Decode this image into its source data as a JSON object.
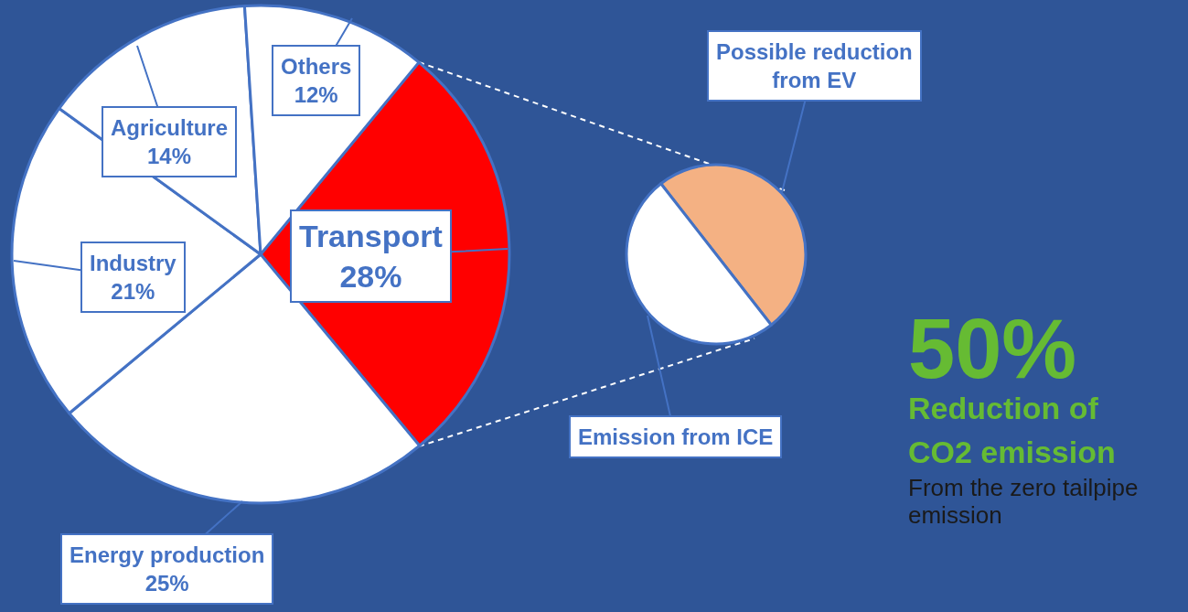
{
  "chart_data": [
    {
      "type": "pie",
      "categories": [
        "Transport",
        "Energy production",
        "Industry",
        "Agriculture",
        "Others"
      ],
      "values": [
        28,
        25,
        21,
        14,
        12
      ],
      "value_labels": [
        "28%",
        "25%",
        "21%",
        "14%",
        "12%"
      ],
      "colors": [
        "#ff0000",
        "#ffffff",
        "#ffffff",
        "#ffffff",
        "#ffffff"
      ]
    },
    {
      "type": "pie",
      "categories": [
        "Possible reduction from EV",
        "Emission from ICE"
      ],
      "values": [
        50,
        50
      ],
      "colors": [
        "#f4b183",
        "#ffffff"
      ]
    },
    {
      "type": "other",
      "title": "50%",
      "subtitle": "Reduction of CO2 emission",
      "annotations": [
        "From the zero tailpipe emission"
      ]
    }
  ]
}
